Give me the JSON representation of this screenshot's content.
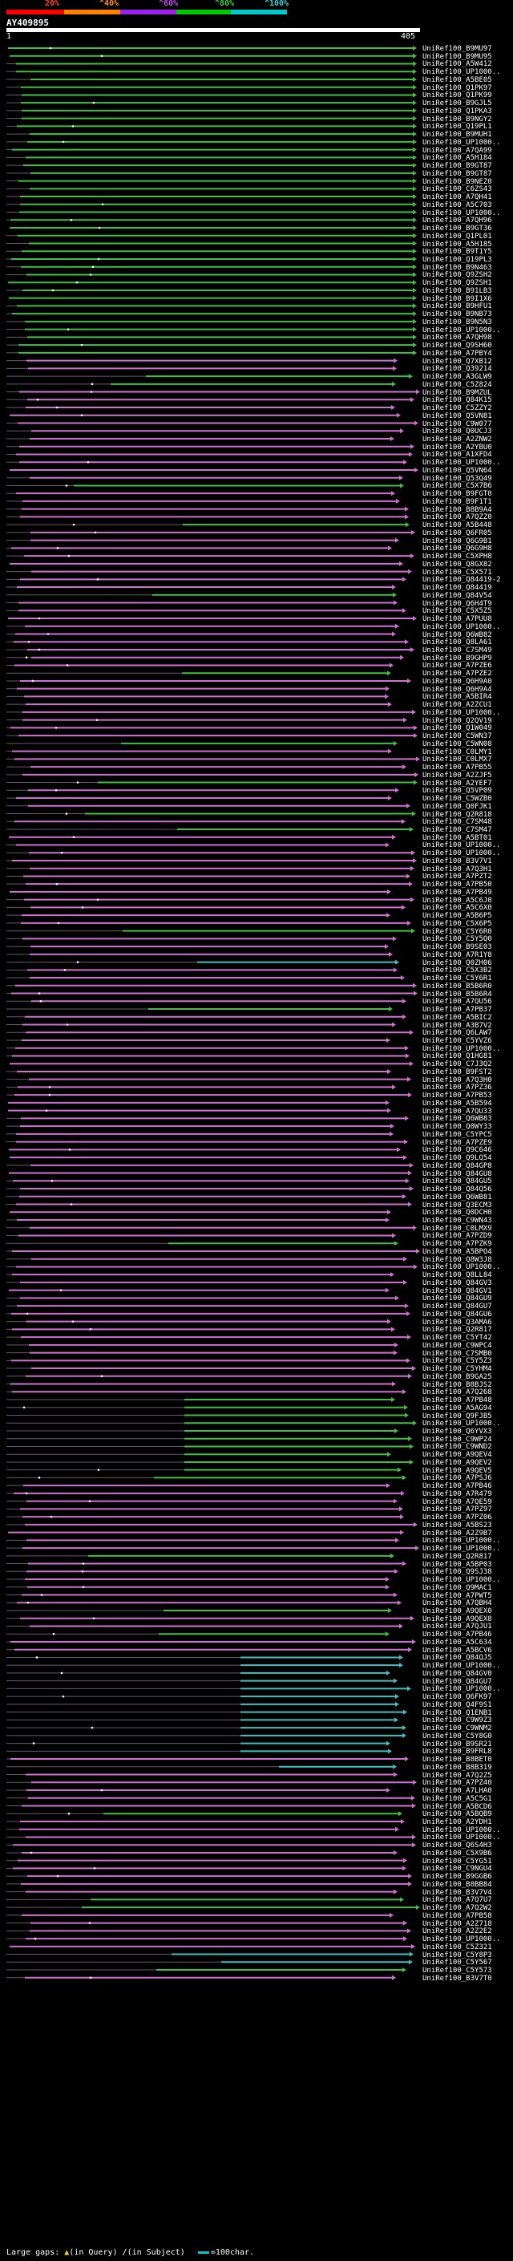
{
  "scale": {
    "ticks": [
      "20%",
      "^40%",
      "^60%",
      "^80%",
      "^100%"
    ],
    "colors": [
      "#ff0000",
      "#ff8000",
      "#a020f0",
      "#00c800",
      "#00c8c8"
    ]
  },
  "query": {
    "title": "AY409895",
    "start": "1",
    "end": "405"
  },
  "legend": {
    "large_gaps": "Large gaps:",
    "in_query": "(in Query)",
    "in_subject": "(in Subject)",
    "scale_text": "=100char."
  },
  "colors": {
    "purple": "#d070d0",
    "green": "#40c040",
    "cyan": "#40c0c0",
    "dark": "#6a5a6a"
  },
  "hits": [
    "UniRef100_B9MU97",
    "UniRef100_B9MU95",
    "UniRef100_A5W412",
    "UniRef100_UP1000..",
    "UniRef100_A5BE05",
    "UniRef100_Q1PK97",
    "UniRef100_Q1PK99",
    "UniRef100_B9GJL5",
    "UniRef100_Q1PKA3",
    "UniRef100_B9NGY2",
    "UniRef100_Q19PL1",
    "UniRef100_B9MUH1",
    "UniRef100_UP1000..",
    "UniRef100_A7QA99",
    "UniRef100_A5H184",
    "UniRef100_B9GT87",
    "UniRef100_B9GT87",
    "UniRef100_B9NEZ0",
    "UniRef100_C6ZS43",
    "UniRef100_A7QH41",
    "UniRef100_A5C703",
    "UniRef100_UP1000..",
    "UniRef100_A7QH96",
    "UniRef100_B9GT36",
    "UniRef100_Q1PL01",
    "UniRef100_A5H185",
    "UniRef100_B9T1Y5",
    "UniRef100_Q19PL3",
    "UniRef100_B9N463",
    "UniRef100_Q9ZSH2",
    "UniRef100_Q9ZSH1",
    "UniRef100_B91LB3",
    "UniRef100_B9I1X6",
    "UniRef100_B9HFU1",
    "UniRef100_B9NB73",
    "UniRef100_B9N5N3",
    "UniRef100_UP1000..",
    "UniRef100_A7QH98",
    "UniRef100_Q9SH60",
    "UniRef100_A7PBY4",
    "UniRef100_Q7XB12",
    "UniRef100_Q39214",
    "UniRef100_A3GLW9",
    "UniRef100_C5Z824",
    "UniRef100_B9MZUL",
    "UniRef100_Q84K15",
    "UniRef100_C5ZZY2",
    "UniRef100_Q5VN81",
    "UniRef100_C9W077",
    "UniRef100_Q0UCJ3",
    "UniRef100_A2ZNW2",
    "UniRef100_A2YBU0",
    "UniRef100_A1XFD4",
    "UniRef100_UP1000..",
    "UniRef100_Q5VN64",
    "UniRef100_Q53Q49",
    "UniRef100_C5X7B6",
    "UniRef100_B9FGT0",
    "UniRef100_B9F1T1",
    "UniRef100_B8B9A4",
    "UniRef100_A7QZZ0",
    "UniRef100_A5B448",
    "UniRef100_Q6FR05",
    "UniRef100_Q6G9B1",
    "UniRef100_Q6G9H8",
    "UniRef100_C5XPH8",
    "UniRef100_Q8GX82",
    "UniRef100_C5X571",
    "UniRef100_Q84419-2",
    "UniRef100_Q84419",
    "UniRef100_Q84V54",
    "UniRef100_Q6H4T9",
    "UniRef100_C5X5Z5",
    "UniRef100_A7PUU8",
    "UniRef100_UP1000..",
    "UniRef100_Q6WB82",
    "UniRef100_Q8LA61",
    "UniRef100_C7SM49",
    "UniRef100_B9GHP9",
    "UniRef100_A7PZE6",
    "UniRef100_A7PZE2",
    "UniRef100_Q6H9A0",
    "UniRef100_Q6H9A4",
    "UniRef100_A5BIR4",
    "UniRef100_A2ZCU1",
    "UniRef100_UP1000..",
    "UniRef100_Q2QV19",
    "UniRef100_Q1W049",
    "UniRef100_C5WN37",
    "UniRef100_C5WN08",
    "UniRef100_C0LMY1",
    "UniRef100_C0LMX7",
    "UniRef100_A7PB55",
    "UniRef100_A2ZJF5",
    "UniRef100_A2YEF7",
    "UniRef100_Q5VP09",
    "UniRef100_C5WZB0",
    "UniRef100_Q0FJK1",
    "UniRef100_Q2R818",
    "UniRef100_C7SM48",
    "UniRef100_C7SM47",
    "UniRef100_A5BT01",
    "UniRef100_UP1000..",
    "UniRef100_UP1000..",
    "UniRef100_B3V7V1",
    "UniRef100_A7Q3H1",
    "UniRef100_A7PZT2",
    "UniRef100_A7PB50",
    "UniRef100_A7PB49",
    "UniRef100_A5C6J0",
    "UniRef100_A5C6X0",
    "UniRef100_A5B6P5",
    "UniRef100_C5X6P5",
    "UniRef100_C5Y6R0",
    "UniRef100_C5Y5Q0",
    "UniRef100_B9SE03",
    "UniRef100_A7R1Y8",
    "UniRef100_Q0ZH06",
    "UniRef100_C5X3B2",
    "UniRef100_C5Y6R1",
    "UniRef100_B5B6R0",
    "UniRef100_B5B6R4",
    "UniRef100_A7QU56",
    "UniRef100_A7PB37",
    "UniRef100_A5BIC2",
    "UniRef100_A3B7V2",
    "UniRef100_Q6LAW7",
    "UniRef100_C5YVZ6",
    "UniRef100_UP1000..",
    "UniRef100_Q1HG81",
    "UniRef100_C7J3Q2",
    "UniRef100_B9FST2",
    "UniRef100_A7Q3H0",
    "UniRef100_A7PZ36",
    "UniRef100_A7PB53",
    "UniRef100_A5B594",
    "UniRef100_A7QU33",
    "UniRef100_Q6WB83",
    "UniRef100_Q0WY33",
    "UniRef100_C5YPC5",
    "UniRef100_A7PZE9",
    "UniRef100_Q9C646",
    "UniRef100_Q9LQ54",
    "UniRef100_Q84GP8",
    "UniRef100_Q84GU8",
    "UniRef100_Q84GU5",
    "UniRef100_Q84Q56",
    "UniRef100_Q6WB81",
    "UniRef100_Q3ECM3",
    "UniRef100_Q0DCH0",
    "UniRef100_C9WN43",
    "UniRef100_C0LMX9",
    "UniRef100_A7PZD9",
    "UniRef100_A7PZK9",
    "UniRef100_A5BPO4",
    "UniRef100_Q8W3J8",
    "UniRef100_UP1000..",
    "UniRef100_Q8LL84",
    "UniRef100_Q84GV3",
    "UniRef100_Q84GV1",
    "UniRef100_Q84GU9",
    "UniRef100_Q84GU7",
    "UniRef100_Q84GU6",
    "UniRef100_Q3AMA6",
    "UniRef100_Q2R817",
    "UniRef100_C5YT42",
    "UniRef100_C9WPC4",
    "UniRef100_C7SMB0",
    "UniRef100_C5Y5Z3",
    "UniRef100_C5YHM4",
    "UniRef100_B9GA25",
    "UniRef100_B8BJS2",
    "UniRef100_A7Q268",
    "UniRef100_A7PB48",
    "UniRef100_A5AG94",
    "UniRef100_Q9FJB5",
    "UniRef100_UP1000..",
    "UniRef100_Q6YVX3",
    "UniRef100_C9WP24",
    "UniRef100_C9WND2",
    "UniRef100_A9QEV4",
    "UniRef100_A9QEV2",
    "UniRef100_A9QEV5",
    "UniRef100_A7PSJ6",
    "UniRef100_A7PB46",
    "UniRef100_A7R479",
    "UniRef100_A7QE59",
    "UniRef100_A7PZ97",
    "UniRef100_A7PZ06",
    "UniRef100_A5BS23",
    "UniRef100_A2Z9B7",
    "UniRef100_UP1000..",
    "UniRef100_UP1000..",
    "UniRef100_Q2R817",
    "UniRef100_A5BP03",
    "UniRef100_Q9SJ38",
    "UniRef100_UP1000..",
    "UniRef100_Q9MAC1",
    "UniRef100_A7PWT5",
    "UniRef100_A7QBH4",
    "UniRef100_A9QEX0",
    "UniRef100_A9QEX8",
    "UniRef100_A7QJU1",
    "UniRef100_A7PB46",
    "UniRef100_A5C634",
    "UniRef100_A5BCV6",
    "UniRef100_Q84QJ5",
    "UniRef100_UP1000..",
    "UniRef100_Q84GV0",
    "UniRef100_Q84GU7",
    "UniRef100_UP1000..",
    "UniRef100_Q6FK97",
    "UniRef100_Q4F9S1",
    "UniRef100_Q1ENB1",
    "UniRef100_C9W9Z3",
    "UniRef100_C9WNM2",
    "UniRef100_C5Y8G0",
    "UniRef100_B9SR21",
    "UniRef100_B9FRL8",
    "UniRef100_B8BET0",
    "UniRef100_B8B319",
    "UniRef100_A7Q2Z5",
    "UniRef100_A7PZ40",
    "UniRef100_A7LHA0",
    "UniRef100_A5C5G1",
    "UniRef100_A5BCD6",
    "UniRef100_A5BQB9",
    "UniRef100_A2YDH1",
    "UniRef100_UP1000..",
    "UniRef100_UP1000..",
    "UniRef100_Q6S4H3",
    "UniRef100_C5X9B6",
    "UniRef100_C5YG51",
    "UniRef100_C9NGU4",
    "UniRef100_B9GGB6",
    "UniRef100_B8BB84",
    "UniRef100_B3V7V4",
    "UniRef100_A7Q7U7",
    "UniRef100_A7Q2W2",
    "UniRef100_A7PB58",
    "UniRef100_A2Z718",
    "UniRef100_A2Z2E2",
    "UniRef100_UP1000..",
    "UniRef100_C5Z321",
    "UniRef100_C5Y8P3",
    "UniRef100_C5Y567",
    "UniRef100_C5Y573",
    "UniRef100_B3V7T0"
  ]
}
